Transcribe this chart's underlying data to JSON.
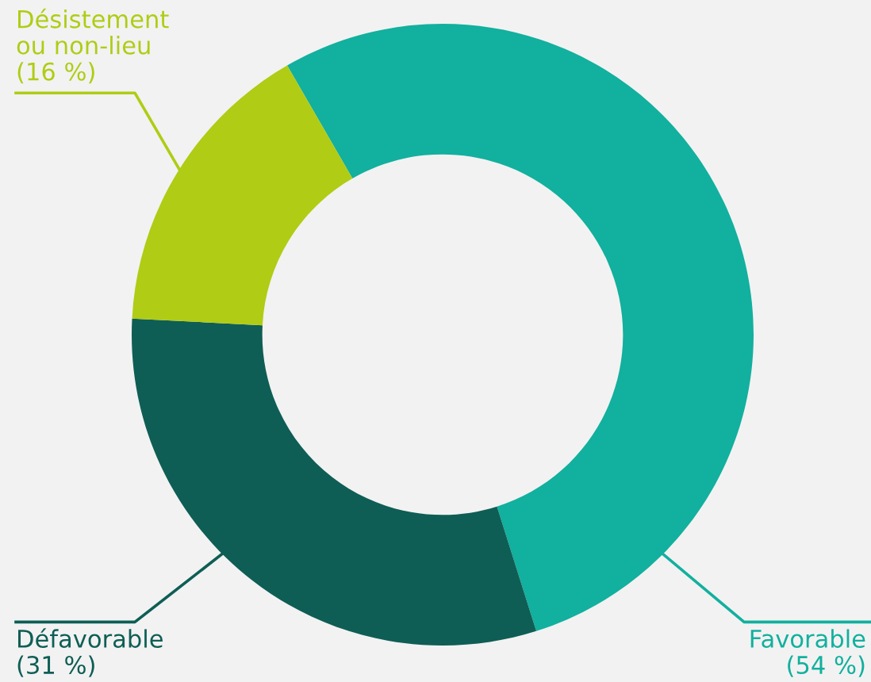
{
  "chart_data": {
    "type": "donut",
    "categories": [
      "Favorable",
      "Défavorable",
      "Désistement\nou non-lieu"
    ],
    "values": [
      54,
      31,
      16
    ],
    "value_labels": [
      "(54 %)",
      "(31 %)",
      "(16 %)"
    ],
    "colors": [
      "#12b09e",
      "#0e5e55",
      "#b0cc14"
    ],
    "legend": false
  }
}
